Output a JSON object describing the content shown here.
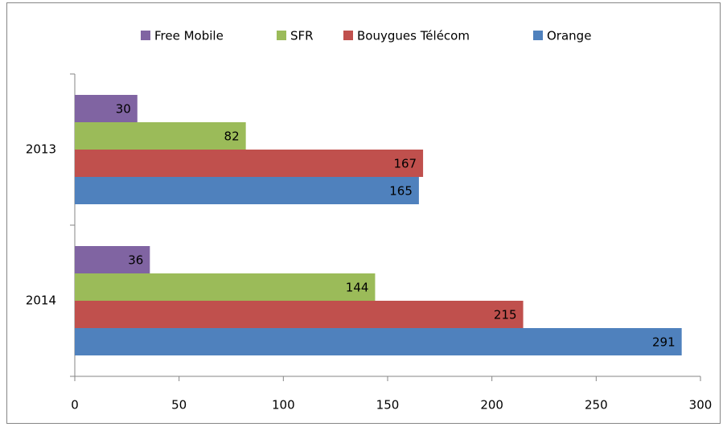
{
  "chart_data": {
    "type": "bar",
    "orientation": "horizontal",
    "categories": [
      "2013",
      "2014"
    ],
    "series": [
      {
        "name": "Free Mobile",
        "color": "#8064a2",
        "values": [
          30,
          36
        ]
      },
      {
        "name": "SFR",
        "color": "#9bbb59",
        "values": [
          82,
          144
        ]
      },
      {
        "name": "Bouygues Télécom",
        "color": "#c0504d",
        "values": [
          167,
          215
        ]
      },
      {
        "name": "Orange",
        "color": "#4f81bd",
        "values": [
          165,
          291
        ]
      }
    ],
    "xlim": [
      0,
      300
    ],
    "xticks": [
      0,
      50,
      100,
      150,
      200,
      250,
      300
    ],
    "legend": "top",
    "grid": false,
    "data_labels": true
  }
}
